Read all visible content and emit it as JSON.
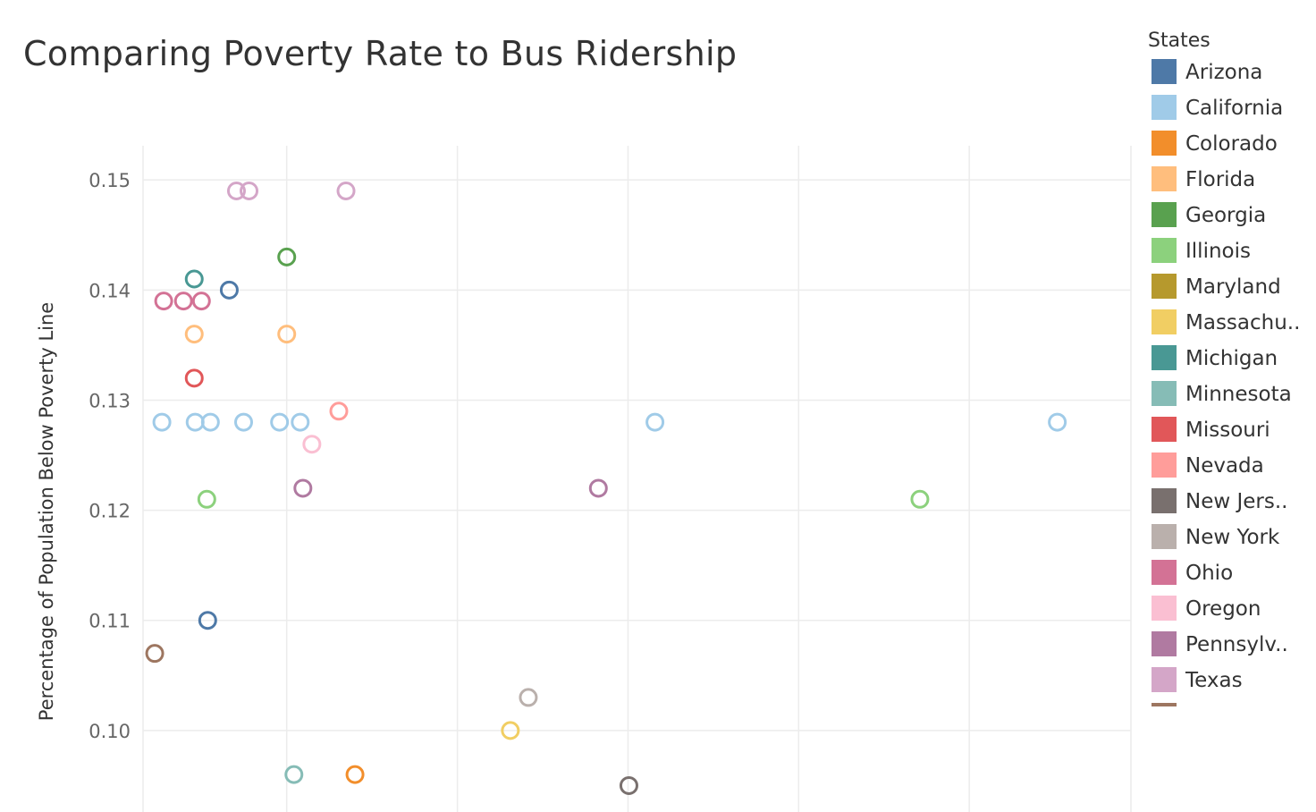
{
  "chart_data": {
    "type": "scatter",
    "title": "Comparing Poverty Rate to Bus Ridership",
    "xlabel": "",
    "ylabel": "Percentage of Population Below Poverty Line",
    "legend_title": "States",
    "legend_placement": "right",
    "grid": true,
    "marker": "hollow-circle",
    "xlim": [
      0,
      11
    ],
    "ylim": [
      0.0926,
      0.1531
    ],
    "yticks": [
      "0.15",
      "0.14",
      "0.13",
      "0.12",
      "0.11",
      "0.10"
    ],
    "ytick_values": [
      0.15,
      0.14,
      0.13,
      0.12,
      0.11,
      0.1
    ],
    "xgrid": [
      0.0,
      1.6,
      3.5,
      5.4,
      7.3,
      9.2,
      11.0
    ],
    "legend": [
      {
        "label": "Arizona",
        "color": "#4E79A7"
      },
      {
        "label": "California",
        "color": "#A0CBE8"
      },
      {
        "label": "Colorado",
        "color": "#F28E2B"
      },
      {
        "label": "Florida",
        "color": "#FFBE7D"
      },
      {
        "label": "Georgia",
        "color": "#59A14F"
      },
      {
        "label": "Illinois",
        "color": "#8CD17D"
      },
      {
        "label": "Maryland",
        "color": "#B6992D"
      },
      {
        "label": "Massachu..",
        "color": "#F1CE63"
      },
      {
        "label": "Michigan",
        "color": "#499894"
      },
      {
        "label": "Minnesota",
        "color": "#86BCB6"
      },
      {
        "label": "Missouri",
        "color": "#E15759"
      },
      {
        "label": "Nevada",
        "color": "#FF9D9A"
      },
      {
        "label": "New Jers..",
        "color": "#79706E"
      },
      {
        "label": "New York",
        "color": "#BAB0AC"
      },
      {
        "label": "Ohio",
        "color": "#D37295"
      },
      {
        "label": "Oregon",
        "color": "#FABFD2"
      },
      {
        "label": "Pennsylv..",
        "color": "#B07AA1"
      },
      {
        "label": "Texas",
        "color": "#D4A6C8"
      },
      {
        "label": "",
        "color": "#9D7660"
      }
    ],
    "points": [
      {
        "state": "Arizona",
        "x": 0.96,
        "y": 0.14,
        "color": "#4E79A7"
      },
      {
        "state": "Arizona",
        "x": 0.72,
        "y": 0.11,
        "color": "#4E79A7"
      },
      {
        "state": "California",
        "x": 0.21,
        "y": 0.128,
        "color": "#A0CBE8"
      },
      {
        "state": "California",
        "x": 0.58,
        "y": 0.128,
        "color": "#A0CBE8"
      },
      {
        "state": "California",
        "x": 0.75,
        "y": 0.128,
        "color": "#A0CBE8"
      },
      {
        "state": "California",
        "x": 1.12,
        "y": 0.128,
        "color": "#A0CBE8"
      },
      {
        "state": "California",
        "x": 1.52,
        "y": 0.128,
        "color": "#A0CBE8"
      },
      {
        "state": "California",
        "x": 1.75,
        "y": 0.128,
        "color": "#A0CBE8"
      },
      {
        "state": "California",
        "x": 5.7,
        "y": 0.128,
        "color": "#A0CBE8"
      },
      {
        "state": "California",
        "x": 10.18,
        "y": 0.128,
        "color": "#A0CBE8"
      },
      {
        "state": "Colorado",
        "x": 2.36,
        "y": 0.096,
        "color": "#F28E2B"
      },
      {
        "state": "Florida",
        "x": 0.57,
        "y": 0.136,
        "color": "#FFBE7D"
      },
      {
        "state": "Florida",
        "x": 1.6,
        "y": 0.136,
        "color": "#FFBE7D"
      },
      {
        "state": "Georgia",
        "x": 1.6,
        "y": 0.143,
        "color": "#59A14F"
      },
      {
        "state": "Illinois",
        "x": 0.71,
        "y": 0.121,
        "color": "#8CD17D"
      },
      {
        "state": "Illinois",
        "x": 8.65,
        "y": 0.121,
        "color": "#8CD17D"
      },
      {
        "state": "Massachu..",
        "x": 4.09,
        "y": 0.1,
        "color": "#F1CE63"
      },
      {
        "state": "Michigan",
        "x": 0.57,
        "y": 0.141,
        "color": "#499894"
      },
      {
        "state": "Minnesota",
        "x": 1.68,
        "y": 0.096,
        "color": "#86BCB6"
      },
      {
        "state": "Missouri",
        "x": 0.57,
        "y": 0.132,
        "color": "#E15759"
      },
      {
        "state": "Nevada",
        "x": 2.18,
        "y": 0.129,
        "color": "#FF9D9A"
      },
      {
        "state": "New Jers..",
        "x": 5.41,
        "y": 0.095,
        "color": "#79706E"
      },
      {
        "state": "New York",
        "x": 4.29,
        "y": 0.103,
        "color": "#BAB0AC"
      },
      {
        "state": "Ohio",
        "x": 0.23,
        "y": 0.139,
        "color": "#D37295"
      },
      {
        "state": "Ohio",
        "x": 0.45,
        "y": 0.139,
        "color": "#D37295"
      },
      {
        "state": "Ohio",
        "x": 0.65,
        "y": 0.139,
        "color": "#D37295"
      },
      {
        "state": "Oregon",
        "x": 1.88,
        "y": 0.126,
        "color": "#FABFD2"
      },
      {
        "state": "Pennsylv..",
        "x": 1.78,
        "y": 0.122,
        "color": "#B07AA1"
      },
      {
        "state": "Pennsylv..",
        "x": 5.07,
        "y": 0.122,
        "color": "#B07AA1"
      },
      {
        "state": "Texas",
        "x": 1.04,
        "y": 0.149,
        "color": "#D4A6C8"
      },
      {
        "state": "Texas",
        "x": 1.18,
        "y": 0.149,
        "color": "#D4A6C8"
      },
      {
        "state": "Texas",
        "x": 2.26,
        "y": 0.149,
        "color": "#D4A6C8"
      },
      {
        "state": "",
        "x": 0.13,
        "y": 0.107,
        "color": "#9D7660"
      }
    ]
  }
}
